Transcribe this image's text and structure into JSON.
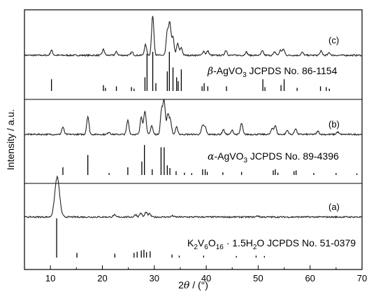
{
  "chart_data": {
    "type": "line",
    "xlabel_main": "2",
    "xlabel_theta": "θ",
    "xlabel_unit": " / (°)",
    "ylabel": "Intensity / a.u.",
    "xlim": [
      5,
      70
    ],
    "x_ticks": [
      "10",
      "20",
      "30",
      "40",
      "50",
      "60",
      "70"
    ],
    "grid": false,
    "panels": [
      {
        "label": "(c)",
        "pattern_peaks": [
          [
            10.2,
            0.12
          ],
          [
            20.2,
            0.14
          ],
          [
            22.7,
            0.08
          ],
          [
            25.7,
            0.08
          ],
          [
            28.3,
            0.25
          ],
          [
            29.7,
            0.95
          ],
          [
            32.5,
            0.55
          ],
          [
            33.0,
            0.75
          ],
          [
            33.6,
            0.42
          ],
          [
            34.5,
            0.28
          ],
          [
            35.2,
            0.18
          ],
          [
            39.5,
            0.1
          ],
          [
            40.3,
            0.1
          ],
          [
            43.8,
            0.12
          ],
          [
            47.7,
            0.08
          ],
          [
            50.8,
            0.1
          ],
          [
            53.2,
            0.08
          ],
          [
            54.3,
            0.12
          ],
          [
            54.9,
            0.14
          ],
          [
            58.5,
            0.07
          ],
          [
            62.1,
            0.1
          ],
          [
            63.7,
            0.06
          ]
        ],
        "reference_name": "-AgVO",
        "reference_greek": "β",
        "reference_sub": "3",
        "reference_code": " JCPDS No. 86-1154",
        "reference_lines": [
          [
            10.2,
            0.3
          ],
          [
            20.2,
            0.15
          ],
          [
            20.6,
            0.08
          ],
          [
            22.7,
            0.12
          ],
          [
            25.6,
            0.1
          ],
          [
            26.1,
            0.06
          ],
          [
            28.2,
            0.35
          ],
          [
            28.6,
            0.95
          ],
          [
            29.7,
            1.0
          ],
          [
            30.3,
            0.2
          ],
          [
            32.5,
            0.5
          ],
          [
            32.9,
            1.0
          ],
          [
            33.6,
            0.6
          ],
          [
            34.3,
            0.35
          ],
          [
            34.6,
            0.25
          ],
          [
            35.2,
            0.55
          ],
          [
            39.2,
            0.12
          ],
          [
            39.6,
            0.2
          ],
          [
            40.3,
            0.12
          ],
          [
            43.9,
            0.12
          ],
          [
            50.9,
            0.3
          ],
          [
            51.3,
            0.1
          ],
          [
            54.4,
            0.15
          ],
          [
            55.0,
            0.3
          ],
          [
            57.5,
            0.08
          ],
          [
            62.0,
            0.12
          ],
          [
            63.1,
            0.1
          ],
          [
            63.7,
            0.06
          ]
        ]
      },
      {
        "label": "(b)",
        "pattern_peaks": [
          [
            12.4,
            0.18
          ],
          [
            17.2,
            0.45
          ],
          [
            21.3,
            0.06
          ],
          [
            24.9,
            0.35
          ],
          [
            27.5,
            0.45
          ],
          [
            28.2,
            0.6
          ],
          [
            29.5,
            0.22
          ],
          [
            31.4,
            0.6
          ],
          [
            31.9,
            0.82
          ],
          [
            32.6,
            0.5
          ],
          [
            33.1,
            0.35
          ],
          [
            34.3,
            0.18
          ],
          [
            39.3,
            0.22
          ],
          [
            39.8,
            0.18
          ],
          [
            43.3,
            0.12
          ],
          [
            45.0,
            0.1
          ],
          [
            46.8,
            0.28
          ],
          [
            52.7,
            0.15
          ],
          [
            53.3,
            0.22
          ],
          [
            55.6,
            0.1
          ],
          [
            57.2,
            0.15
          ],
          [
            61.5,
            0.08
          ],
          [
            65.3,
            0.06
          ]
        ],
        "reference_name": "-AgVO",
        "reference_greek": "α",
        "reference_sub": "3",
        "reference_code": " JCPDS No. 89-4396",
        "reference_lines": [
          [
            12.4,
            0.2
          ],
          [
            17.2,
            0.52
          ],
          [
            21.3,
            0.05
          ],
          [
            24.9,
            0.2
          ],
          [
            27.6,
            0.35
          ],
          [
            28.1,
            0.78
          ],
          [
            29.6,
            0.15
          ],
          [
            31.3,
            0.72
          ],
          [
            31.9,
            0.72
          ],
          [
            32.5,
            0.25
          ],
          [
            33.0,
            0.18
          ],
          [
            34.2,
            0.1
          ],
          [
            35.8,
            0.06
          ],
          [
            37.2,
            0.05
          ],
          [
            39.3,
            0.15
          ],
          [
            39.8,
            0.15
          ],
          [
            40.2,
            0.08
          ],
          [
            43.2,
            0.07
          ],
          [
            46.8,
            0.08
          ],
          [
            52.9,
            0.12
          ],
          [
            53.3,
            0.15
          ],
          [
            53.8,
            0.06
          ],
          [
            56.9,
            0.1
          ],
          [
            57.3,
            0.12
          ],
          [
            60.7,
            0.05
          ],
          [
            65.0,
            0.05
          ],
          [
            69.0,
            0.04
          ]
        ]
      },
      {
        "label": "(a)",
        "pattern_peaks": [
          [
            11.3,
            1.0
          ],
          [
            22.3,
            0.05
          ],
          [
            26.4,
            0.06
          ],
          [
            27.4,
            0.1
          ],
          [
            28.4,
            0.12
          ],
          [
            29.1,
            0.08
          ],
          [
            33.5,
            0.03
          ],
          [
            49.9,
            0.03
          ]
        ],
        "reference_text": "K2V6O16 · 1.5H2O JCPDS No. 51-0379",
        "reference_lines": [
          [
            11.2,
            1.0
          ],
          [
            15.1,
            0.12
          ],
          [
            22.4,
            0.1
          ],
          [
            26.1,
            0.12
          ],
          [
            26.7,
            0.15
          ],
          [
            27.5,
            0.18
          ],
          [
            28.0,
            0.2
          ],
          [
            28.5,
            0.14
          ],
          [
            29.2,
            0.16
          ],
          [
            33.4,
            0.08
          ],
          [
            34.8,
            0.05
          ],
          [
            39.5,
            0.05
          ],
          [
            45.8,
            0.04
          ],
          [
            49.6,
            0.05
          ],
          [
            51.2,
            0.04
          ]
        ]
      }
    ]
  }
}
